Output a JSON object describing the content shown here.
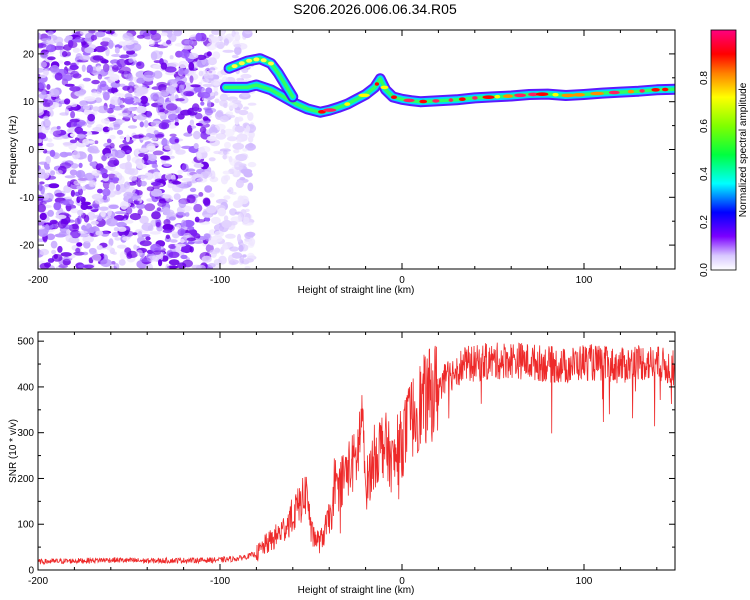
{
  "chart_data": [
    {
      "type": "heatmap",
      "title": "S206.2026.006.06.34.R05",
      "xlabel": "Height of straight line (km)",
      "ylabel": "Frequency (Hz)",
      "xlim": [
        -200,
        150
      ],
      "ylim": [
        -25,
        25
      ],
      "xticks": [
        -200,
        -100,
        0,
        100
      ],
      "yticks": [
        -20,
        -10,
        0,
        10,
        20
      ],
      "colorbar": {
        "label": "Normalized spectral amplitude",
        "range": [
          0,
          1
        ],
        "ticks": [
          0.0,
          0.2,
          0.4,
          0.6,
          0.8
        ],
        "colormap": [
          "#ffffff",
          "#7b00ff",
          "#0000ff",
          "#00ffff",
          "#00ff00",
          "#ffff00",
          "#ff8000",
          "#ff0000",
          "#ff0080"
        ]
      },
      "ridge": {
        "description": "dominant frequency band (Hz) vs height (km)",
        "x": [
          -97,
          -85,
          -80,
          -72,
          -65,
          -58,
          -52,
          -45,
          -40,
          -35,
          -30,
          -25,
          -20,
          -15,
          -12,
          -9,
          -5,
          0,
          5,
          10,
          20,
          30,
          40,
          50,
          60,
          70,
          80,
          90,
          100,
          110,
          120,
          130,
          140,
          150
        ],
        "y": [
          13,
          13,
          13.5,
          12.5,
          11,
          9.5,
          8.5,
          7.8,
          8.2,
          8.8,
          9.5,
          10.5,
          11.5,
          13,
          14.8,
          12.5,
          11,
          10.5,
          10.2,
          10,
          10.2,
          10.4,
          10.8,
          11,
          11.2,
          11.5,
          11.6,
          11.3,
          11.5,
          11.8,
          12,
          12.2,
          12.5,
          12.6
        ]
      },
      "branch": {
        "description": "secondary upper branch (Hz) vs height (km)",
        "x": [
          -95,
          -85,
          -78,
          -72,
          -68,
          -64,
          -60
        ],
        "y": [
          17,
          18.5,
          19,
          18,
          16,
          13.5,
          11
        ]
      },
      "noise_region": {
        "x_from": -200,
        "x_to": -90,
        "y_from": -25,
        "y_to": 25
      }
    },
    {
      "type": "line",
      "xlabel": "Height of straight line (km)",
      "ylabel": "SNR (10 * v/v)",
      "xlim": [
        -200,
        150
      ],
      "ylim": [
        0,
        520
      ],
      "xticks": [
        -200,
        -100,
        0,
        100
      ],
      "yticks": [
        0,
        100,
        200,
        300,
        400,
        500
      ],
      "color": "#ee2a2a",
      "series": [
        {
          "name": "SNR",
          "x": [
            -200,
            -180,
            -160,
            -140,
            -120,
            -100,
            -90,
            -80,
            -75,
            -70,
            -65,
            -60,
            -55,
            -52,
            -50,
            -45,
            -40,
            -35,
            -30,
            -25,
            -22,
            -20,
            -15,
            -10,
            -5,
            0,
            5,
            10,
            15,
            20,
            25,
            30,
            35,
            40,
            45,
            50,
            60,
            70,
            80,
            90,
            100,
            110,
            120,
            130,
            140,
            150
          ],
          "values": [
            18,
            20,
            22,
            20,
            21,
            22,
            25,
            35,
            55,
            70,
            90,
            120,
            150,
            175,
            80,
            60,
            110,
            180,
            220,
            240,
            330,
            180,
            250,
            280,
            230,
            280,
            330,
            360,
            380,
            400,
            420,
            440,
            450,
            450,
            455,
            455,
            460,
            455,
            450,
            445,
            455,
            450,
            445,
            455,
            450,
            440
          ]
        }
      ]
    }
  ]
}
